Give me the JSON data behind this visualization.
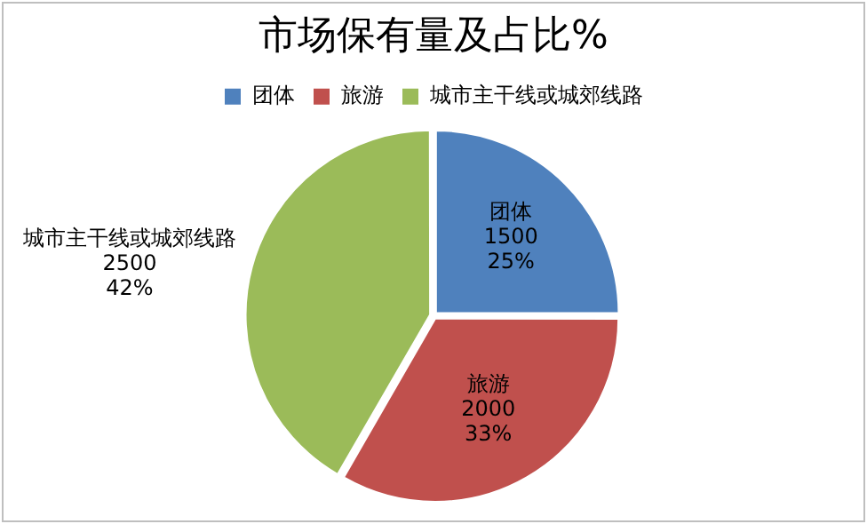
{
  "chart_data": {
    "type": "pie",
    "title": "市场保有量及占比%",
    "categories": [
      "团体",
      "旅游",
      "城市主干线或城郊线路"
    ],
    "values": [
      1500,
      2000,
      2500
    ],
    "colors": [
      "#4f81bd",
      "#c0504d",
      "#9bbb59"
    ],
    "value_labels": [
      "1500\n25%",
      "2000\n33%",
      "2500\n42%"
    ],
    "legend": "top"
  }
}
